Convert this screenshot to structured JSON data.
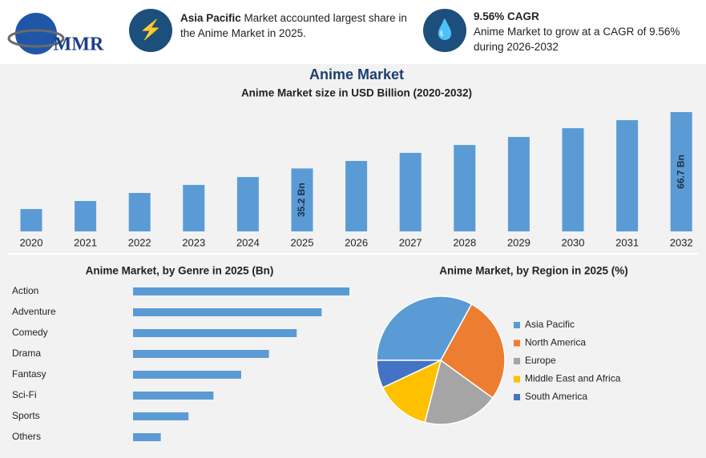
{
  "header": {
    "logo": "MMR",
    "highlights": [
      {
        "bold": "Asia Pacific",
        "text": " Market accounted largest share in the Anime Market in 2025."
      },
      {
        "bold": "9.56% CAGR",
        "text": "Anime Market to grow at a CAGR of 9.56% during 2026-2032"
      }
    ]
  },
  "chart_data": [
    {
      "type": "bar",
      "title": "Anime Market",
      "subtitle": "Anime Market size in USD Billion (2020-2032)",
      "categories": [
        "2020",
        "2021",
        "2022",
        "2023",
        "2024",
        "2025",
        "2026",
        "2027",
        "2028",
        "2029",
        "2030",
        "2031",
        "2032"
      ],
      "values": [
        12.5,
        17.0,
        21.5,
        26.0,
        30.4,
        35.2,
        39.4,
        43.9,
        48.3,
        52.8,
        57.7,
        62.2,
        66.7
      ],
      "value_labels": [
        null,
        null,
        null,
        null,
        null,
        "35.2 Bn",
        null,
        null,
        null,
        null,
        null,
        null,
        "66.7 Bn"
      ],
      "color": "#5b9bd5"
    },
    {
      "type": "bar",
      "orientation": "horizontal",
      "title": "Anime Market, by Genre in 2025 (Bn)",
      "categories": [
        "Action",
        "Adventure",
        "Comedy",
        "Drama",
        "Fantasy",
        "Sci-Fi",
        "Sports",
        "Others"
      ],
      "values": [
        7.8,
        6.8,
        5.9,
        4.9,
        3.9,
        2.9,
        2.0,
        1.0
      ],
      "color": "#5b9bd5"
    },
    {
      "type": "pie",
      "title": "Anime Market, by Region in 2025 (%)",
      "categories": [
        "Asia Pacific",
        "North America",
        "Europe",
        "Middle East and Africa",
        "South America"
      ],
      "values": [
        33,
        27,
        19,
        14,
        7
      ],
      "colors": [
        "#5b9bd5",
        "#ed7d31",
        "#a5a5a5",
        "#ffc000",
        "#4472c4"
      ]
    }
  ]
}
